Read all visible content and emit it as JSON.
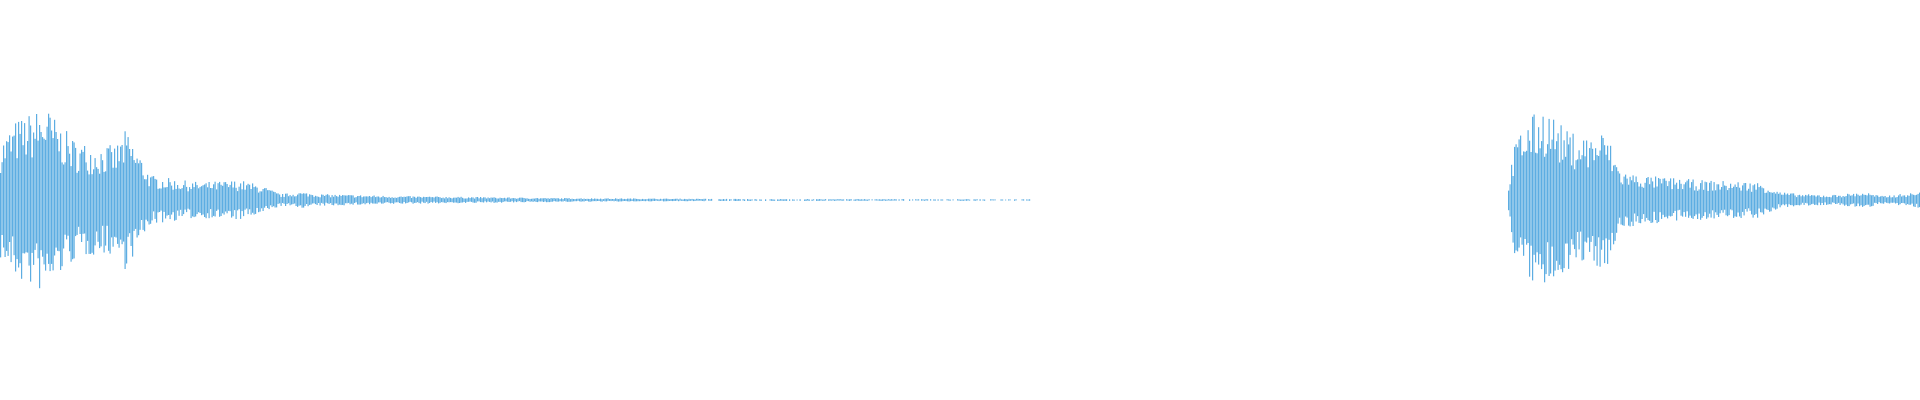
{
  "waveform": {
    "color": "#5dade2",
    "background": "#ffffff",
    "clips": [
      {
        "label": "",
        "segment": "first"
      },
      {
        "label": "",
        "segment": "second"
      }
    ]
  }
}
